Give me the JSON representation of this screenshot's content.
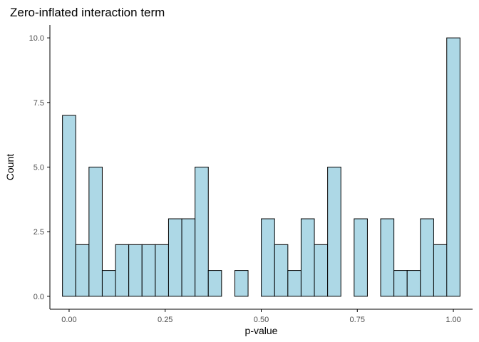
{
  "chart_data": {
    "type": "bar",
    "title": "Zero-inflated interaction term",
    "xlabel": "p-value",
    "ylabel": "Count",
    "x_ticks": [
      0.0,
      0.25,
      0.5,
      0.75,
      1.0
    ],
    "x_tick_labels": [
      "0.00",
      "0.25",
      "0.50",
      "0.75",
      "1.00"
    ],
    "y_ticks": [
      0.0,
      2.5,
      5.0,
      7.5,
      10.0
    ],
    "y_tick_labels": [
      "0.0",
      "2.5",
      "5.0",
      "7.5",
      "10.0"
    ],
    "bin_width": 0.0345,
    "bin_centers": [
      0.0,
      0.0345,
      0.069,
      0.1035,
      0.138,
      0.1725,
      0.207,
      0.2415,
      0.276,
      0.3105,
      0.345,
      0.3795,
      0.414,
      0.4485,
      0.483,
      0.5175,
      0.552,
      0.5865,
      0.621,
      0.6555,
      0.69,
      0.7245,
      0.759,
      0.7935,
      0.828,
      0.8625,
      0.897,
      0.9315,
      0.966,
      1.0
    ],
    "values": [
      7,
      2,
      5,
      1,
      2,
      2,
      2,
      2,
      3,
      3,
      5,
      1,
      0,
      1,
      0,
      3,
      2,
      1,
      3,
      2,
      5,
      0,
      3,
      0,
      3,
      1,
      1,
      3,
      2,
      10
    ],
    "xlim": [
      -0.05,
      1.05
    ],
    "ylim": [
      -0.5,
      10.5
    ],
    "fill_color": "#ADD8E6",
    "outline_color": "#000000",
    "grid": false,
    "legend": "none"
  }
}
